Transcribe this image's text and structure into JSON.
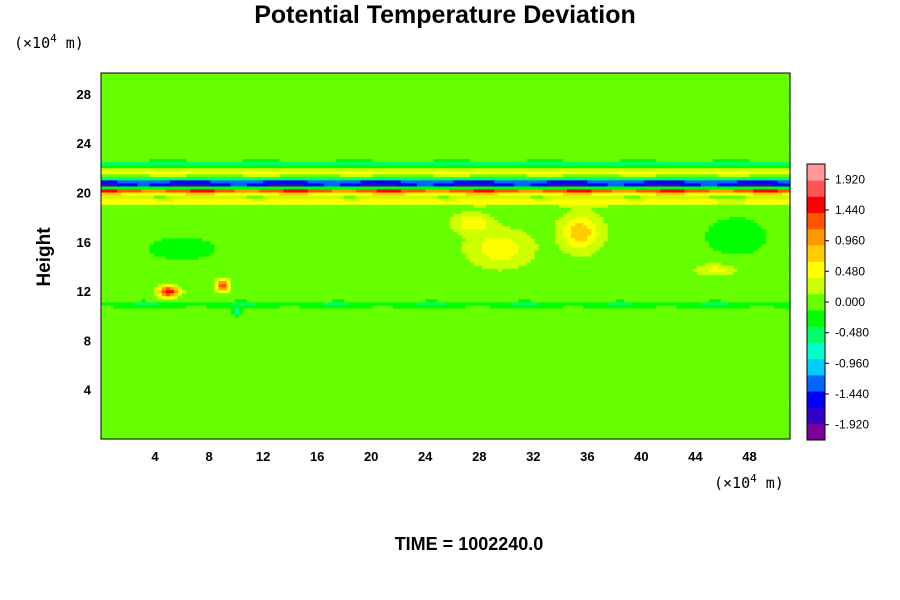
{
  "chart_data": {
    "type": "heatmap",
    "title": "Potential Temperature Deviation",
    "ylabel": "Height",
    "xunit_prefix": "(×10",
    "xunit_exp": "4",
    "xunit_suffix": " m)",
    "yunit_prefix": "(×10",
    "yunit_exp": "4",
    "yunit_suffix": " m)",
    "x_ticks": [
      "4",
      "8",
      "12",
      "16",
      "20",
      "24",
      "28",
      "32",
      "36",
      "40",
      "44",
      "48"
    ],
    "y_ticks": [
      "4",
      "8",
      "12",
      "16",
      "20",
      "24",
      "28"
    ],
    "xlim": [
      0,
      51
    ],
    "ylim": [
      0,
      29.7
    ],
    "colorbar": {
      "ticks": [
        "1.920",
        "1.440",
        "0.960",
        "0.480",
        "0.000",
        "-0.480",
        "-0.960",
        "-1.440",
        "-1.920"
      ],
      "range": [
        -2.16,
        2.16
      ],
      "colors": [
        "#7a0099",
        "#3300cc",
        "#0000ff",
        "#0066ff",
        "#00ccff",
        "#00ffcc",
        "#00ff66",
        "#00ff00",
        "#66ff00",
        "#ccff00",
        "#ffff00",
        "#ffcc00",
        "#ff9900",
        "#ff5500",
        "#ff0000",
        "#ff5555",
        "#ff9999"
      ]
    },
    "field": {
      "background_value": 0.0,
      "features": [
        {
          "kind": "band",
          "y": 20.7,
          "half_width": 0.55,
          "value": -1.95
        },
        {
          "kind": "band",
          "y": 20.2,
          "half_width": 0.35,
          "value": 1.95
        },
        {
          "kind": "band",
          "y": 21.7,
          "half_width": 0.45,
          "value": 0.55
        },
        {
          "kind": "band",
          "y": 22.3,
          "half_width": 0.35,
          "value": -0.6
        },
        {
          "kind": "band",
          "y": 19.3,
          "half_width": 0.35,
          "value": 0.6
        },
        {
          "kind": "band",
          "y": 11.0,
          "half_width": 0.3,
          "value": -0.4
        },
        {
          "kind": "patch",
          "x": 35.5,
          "y": 16.8,
          "rx": 1.6,
          "ry": 1.6,
          "value": 0.8
        },
        {
          "kind": "patch",
          "x": 29.5,
          "y": 15.5,
          "rx": 2.5,
          "ry": 1.6,
          "value": 0.55
        },
        {
          "kind": "patch",
          "x": 27.5,
          "y": 17.6,
          "rx": 1.5,
          "ry": 0.8,
          "value": 0.6
        },
        {
          "kind": "patch",
          "x": 5.0,
          "y": 12.0,
          "rx": 0.8,
          "ry": 0.5,
          "value": 1.6
        },
        {
          "kind": "patch",
          "x": 9.0,
          "y": 12.5,
          "rx": 0.5,
          "ry": 0.5,
          "value": 1.4
        },
        {
          "kind": "patch",
          "x": 10.0,
          "y": 10.4,
          "rx": 0.3,
          "ry": 0.3,
          "value": -1.0
        },
        {
          "kind": "patch",
          "x": 45.5,
          "y": 13.8,
          "rx": 1.5,
          "ry": 0.5,
          "value": 0.5
        },
        {
          "kind": "patch",
          "x": 6.0,
          "y": 15.5,
          "rx": 4.0,
          "ry": 1.5,
          "value": -0.2
        },
        {
          "kind": "patch",
          "x": 47.0,
          "y": 16.5,
          "rx": 3.0,
          "ry": 2.0,
          "value": -0.25
        }
      ]
    }
  },
  "footer": {
    "time_label": "TIME = 1002240.0"
  }
}
